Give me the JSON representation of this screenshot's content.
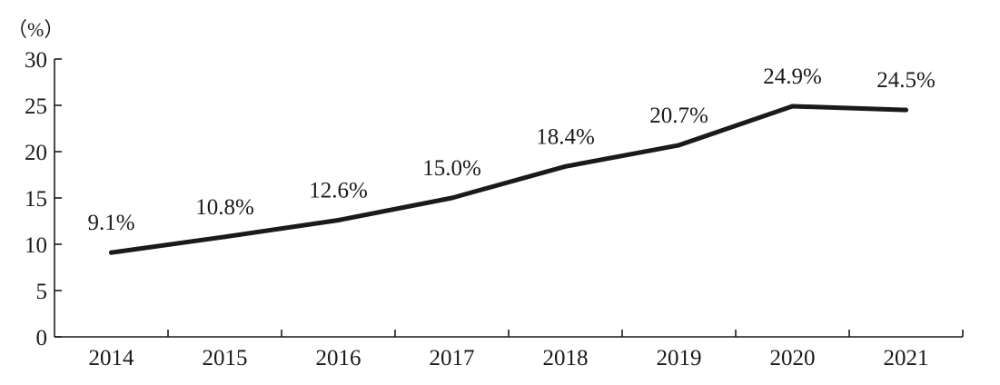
{
  "chart_data": {
    "type": "line",
    "unit_label": "（%）",
    "categories": [
      "2014",
      "2015",
      "2016",
      "2017",
      "2018",
      "2019",
      "2020",
      "2021"
    ],
    "values": [
      9.1,
      10.8,
      12.6,
      15.0,
      18.4,
      20.7,
      24.9,
      24.5
    ],
    "data_labels": [
      "9.1%",
      "10.8%",
      "12.6%",
      "15.0%",
      "18.4%",
      "20.7%",
      "24.9%",
      "24.5%"
    ],
    "ylim": [
      0,
      30
    ],
    "yticks": [
      0,
      5,
      10,
      15,
      20,
      25,
      30
    ],
    "ytick_labels": [
      "0",
      "5",
      "10",
      "15",
      "20",
      "25",
      "30"
    ],
    "grid": false,
    "legend": "none",
    "line_color": "#1a1a1a"
  }
}
